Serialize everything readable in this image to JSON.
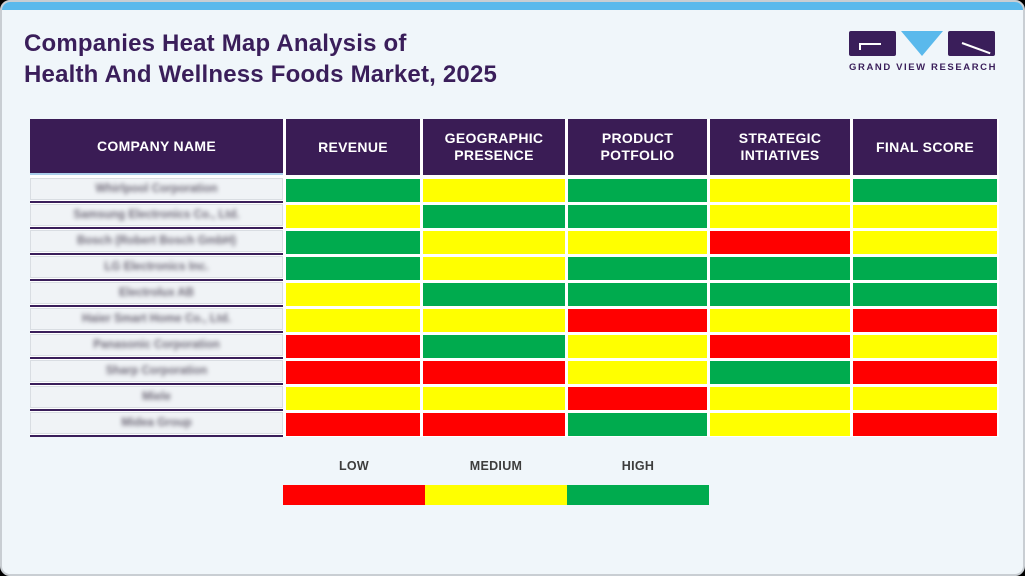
{
  "page": {
    "title_line1": "Companies Heat Map Analysis of",
    "title_line2": "Health And Wellness Foods Market, 2025"
  },
  "logo": {
    "text": "GRAND VIEW RESEARCH"
  },
  "chart_data": {
    "type": "heatmap",
    "title": "Companies Heat Map Analysis of Health And Wellness Foods Market, 2025",
    "columns": [
      "COMPANY NAME",
      "REVENUE",
      "GEOGRAPHIC PRESENCE",
      "PRODUCT POTFOLIO",
      "STRATEGIC INTIATIVES",
      "FINAL SCORE"
    ],
    "scale": {
      "low": "#ff0000",
      "medium": "#ffff00",
      "high": "#00ab4e"
    },
    "rows": [
      {
        "company": "Whirlpool Corporation",
        "scores": [
          "high",
          "medium",
          "high",
          "medium",
          "high"
        ]
      },
      {
        "company": "Samsung Electronics Co., Ltd.",
        "scores": [
          "medium",
          "high",
          "high",
          "medium",
          "medium"
        ]
      },
      {
        "company": "Bosch (Robert Bosch GmbH)",
        "scores": [
          "high",
          "medium",
          "medium",
          "low",
          "medium"
        ]
      },
      {
        "company": "LG Electronics Inc.",
        "scores": [
          "high",
          "medium",
          "high",
          "high",
          "high"
        ]
      },
      {
        "company": "Electrolux AB",
        "scores": [
          "medium",
          "high",
          "high",
          "high",
          "high"
        ]
      },
      {
        "company": "Haier Smart Home Co., Ltd.",
        "scores": [
          "medium",
          "medium",
          "low",
          "medium",
          "low"
        ]
      },
      {
        "company": "Panasonic Corporation",
        "scores": [
          "low",
          "high",
          "medium",
          "low",
          "medium"
        ]
      },
      {
        "company": "Sharp Corporation",
        "scores": [
          "low",
          "low",
          "medium",
          "high",
          "low"
        ]
      },
      {
        "company": "Miele",
        "scores": [
          "medium",
          "medium",
          "low",
          "medium",
          "medium"
        ]
      },
      {
        "company": "Midea Group",
        "scores": [
          "low",
          "low",
          "high",
          "medium",
          "low"
        ]
      }
    ],
    "legend": {
      "labels": [
        "LOW",
        "MEDIUM",
        "HIGH"
      ],
      "order": [
        "low",
        "medium",
        "high"
      ]
    },
    "layout": {
      "accent_blue": "#5ab9ec",
      "brand_purple": "#3a1e5a",
      "header_bg": "#3a1c55"
    }
  }
}
